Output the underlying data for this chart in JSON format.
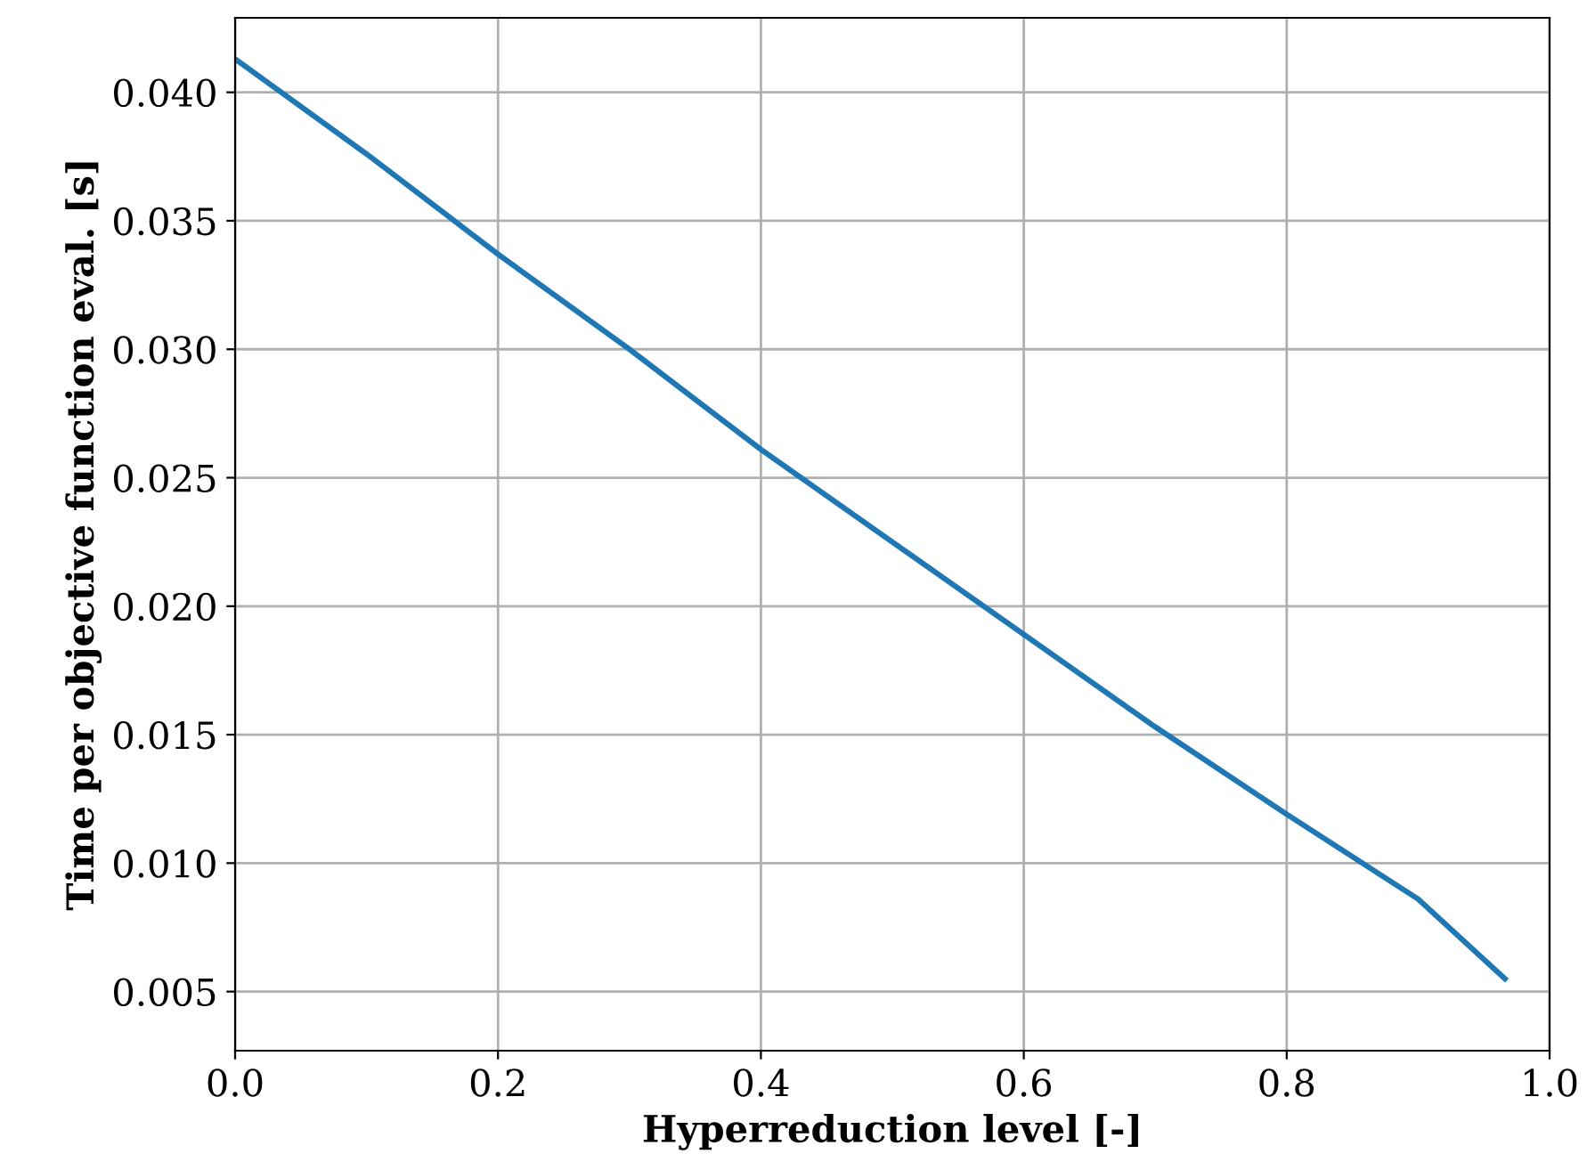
{
  "chart_data": {
    "type": "line",
    "xlabel": "Hyperreduction level [-]",
    "ylabel": "Time per objective function eval. [s]",
    "x": [
      0,
      0.1,
      0.2,
      0.3,
      0.4,
      0.5,
      0.6,
      0.7,
      0.8,
      0.9,
      0.966
    ],
    "series": [
      {
        "color": "#1f77b4",
        "values": [
          0.0413,
          0.0376,
          0.0337,
          0.03,
          0.0261,
          0.0225,
          0.0189,
          0.0153,
          0.0119,
          0.0086,
          0.0055
        ]
      }
    ],
    "xlim": [
      0,
      1.0
    ],
    "xticks": [
      {
        "value": 0,
        "label": "0.0"
      },
      {
        "value": 0.2,
        "label": "0.2"
      },
      {
        "value": 0.4,
        "label": "0.4"
      },
      {
        "value": 0.6,
        "label": "0.6"
      },
      {
        "value": 0.8,
        "label": "0.8"
      },
      {
        "value": 1.0,
        "label": "1.0"
      }
    ],
    "ylim": [
      0.0027,
      0.0429
    ],
    "yticks": [
      {
        "value": 0.005,
        "label": "0.005"
      },
      {
        "value": 0.01,
        "label": "0.010"
      },
      {
        "value": 0.015,
        "label": "0.015"
      },
      {
        "value": 0.02,
        "label": "0.020"
      },
      {
        "value": 0.025,
        "label": "0.025"
      },
      {
        "value": 0.03,
        "label": "0.030"
      },
      {
        "value": 0.035,
        "label": "0.035"
      },
      {
        "value": 0.04,
        "label": "0.040"
      }
    ],
    "grid": true
  }
}
